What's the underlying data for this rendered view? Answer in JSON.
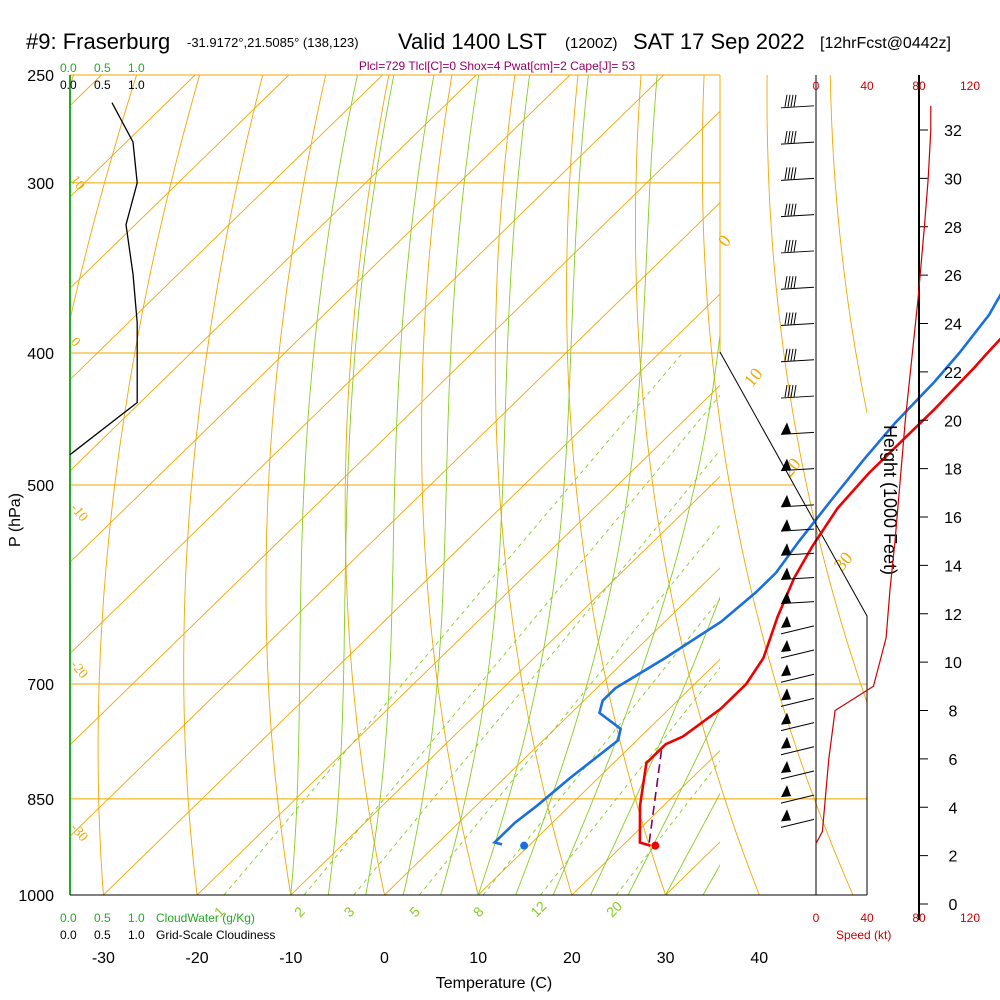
{
  "header": {
    "station": "#9: Fraserburg",
    "coords": "-31.9172°,21.5085° (138,123)",
    "valid": "Valid 1400 LST",
    "valid_z": "(1200Z)",
    "date": "SAT 17 Sep 2022",
    "forecast": "[12hrFcst@0442z]",
    "indices": "Plcl=729 Tlcl[C]=0 Shox=4 Pwat[cm]=2 Cape[J]= 53"
  },
  "colors": {
    "temperature": "#ee0000",
    "dewpoint": "#1a6fe0",
    "isotherm": "#f0a800",
    "dry_adiabat": "#f0a800",
    "moist_adiabat": "#88cc22",
    "mixing_ratio": "#88cc22",
    "parcel": "#800060",
    "cloud_water": "#22aa22",
    "cloudiness": "#000000",
    "wind_speed": "#cc0000",
    "indices": "#990066"
  },
  "chart_data": {
    "type": "line",
    "title": "#9: Fraserburg",
    "xlabel": "Temperature (C)",
    "ylabel": "P (hPa)",
    "y_scale": "log",
    "xlim": [
      -35,
      52
    ],
    "ylim": [
      1000,
      250
    ],
    "x_ticks": [
      -30,
      -20,
      -10,
      0,
      10,
      20,
      30,
      40
    ],
    "p_ticks": [
      250,
      300,
      400,
      500,
      700,
      850,
      1000
    ],
    "height_axis": {
      "label": "Height (1000 Feet)",
      "ticks": [
        0,
        2,
        4,
        6,
        8,
        10,
        12,
        14,
        16,
        18,
        20,
        22,
        24,
        26,
        28,
        30,
        32
      ]
    },
    "speed_axis": {
      "label": "Speed (kt)",
      "ticks": [
        "0",
        "40",
        "80",
        "120"
      ]
    },
    "cloud_scale": {
      "ticks": [
        "0.0",
        "0.5",
        "1.0"
      ],
      "cloud_water_label": "CloudWater (g/Kg)",
      "cloudiness_label": "Grid-Scale Cloudiness"
    },
    "dry_adiabat_labels": [
      "30",
      "20",
      "10",
      "0",
      "-10",
      "-20",
      "-30"
    ],
    "theta_labels_right": [
      "0",
      "10",
      "20",
      "30"
    ],
    "mixing_ratio_labels": [
      "1",
      "2",
      "3",
      "5",
      "8",
      "12",
      "20"
    ],
    "series": [
      {
        "name": "Temperature",
        "points": [
          [
            23.0,
            920
          ],
          [
            21.5,
            915
          ],
          [
            17.5,
            860
          ],
          [
            13.5,
            800
          ],
          [
            13.5,
            775
          ],
          [
            14.5,
            765
          ],
          [
            15.5,
            730
          ],
          [
            15.5,
            700
          ],
          [
            14.5,
            670
          ],
          [
            11.5,
            625
          ],
          [
            9.0,
            585
          ],
          [
            7.5,
            555
          ],
          [
            6.0,
            520
          ],
          [
            5.5,
            490
          ],
          [
            5.5,
            465
          ],
          [
            5.5,
            440
          ],
          [
            5.2,
            410
          ],
          [
            5.0,
            400
          ],
          [
            4.5,
            370
          ],
          [
            3.5,
            345
          ],
          [
            1.5,
            320
          ],
          [
            -1.0,
            300
          ],
          [
            -3.0,
            285
          ],
          [
            -5.0,
            270
          ],
          [
            -6.0,
            262
          ]
        ]
      },
      {
        "name": "Dewpoint",
        "points": [
          [
            7.0,
            918
          ],
          [
            6.0,
            915
          ],
          [
            6.0,
            885
          ],
          [
            6.5,
            860
          ],
          [
            7.0,
            820
          ],
          [
            8.0,
            770
          ],
          [
            7.0,
            755
          ],
          [
            3.0,
            735
          ],
          [
            2.0,
            720
          ],
          [
            2.0,
            705
          ],
          [
            4.0,
            670
          ],
          [
            6.0,
            630
          ],
          [
            6.5,
            600
          ],
          [
            6.5,
            580
          ],
          [
            5.5,
            550
          ],
          [
            4.5,
            515
          ],
          [
            3.5,
            480
          ],
          [
            2.8,
            450
          ],
          [
            2.5,
            420
          ],
          [
            2.0,
            400
          ],
          [
            1.0,
            375
          ],
          [
            -1.0,
            350
          ],
          [
            -3.0,
            328
          ],
          [
            -5.5,
            305
          ],
          [
            -8.0,
            282
          ],
          [
            -10.0,
            262
          ]
        ]
      },
      {
        "name": "Parcel",
        "points": [
          [
            22.5,
            915
          ],
          [
            13.5,
            780
          ]
        ]
      }
    ],
    "surface_temperature": [
      23.5,
      920
    ],
    "surface_dewpoint": [
      9.5,
      920
    ],
    "cloudiness_profile": [
      [
        0.3,
        262
      ],
      [
        0.45,
        280
      ],
      [
        0.48,
        300
      ],
      [
        0.4,
        322
      ],
      [
        0.45,
        350
      ],
      [
        0.48,
        380
      ],
      [
        0.48,
        435
      ],
      [
        0.0,
        475
      ]
    ],
    "wind_speed_profile": [
      [
        0,
        2.5
      ],
      [
        0.5,
        3
      ],
      [
        1,
        6
      ],
      [
        1.5,
        8
      ],
      [
        3,
        8.5
      ],
      [
        4.5,
        9
      ],
      [
        5,
        10
      ],
      [
        5.5,
        11
      ],
      [
        5.8,
        13
      ],
      [
        6.2,
        15
      ],
      [
        7,
        20
      ],
      [
        8,
        25
      ],
      [
        8.5,
        28
      ],
      [
        8.8,
        30
      ],
      [
        9,
        32
      ],
      [
        9,
        33
      ]
    ],
    "wind_barb_heights": [
      33,
      31.5,
      30,
      28.5,
      27,
      25.5,
      24,
      22.5,
      21,
      19.5,
      18,
      16.5,
      15.5,
      14.5,
      13.5,
      12.5,
      11.5,
      10.5,
      9.5,
      8.5,
      7.5,
      6.5,
      5.5,
      4.5,
      3.5
    ]
  }
}
